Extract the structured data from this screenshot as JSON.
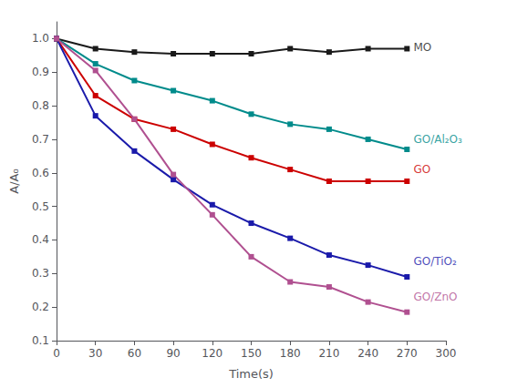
{
  "chart_data": {
    "type": "line",
    "x": [
      0,
      30,
      60,
      90,
      120,
      150,
      180,
      210,
      240,
      270
    ],
    "series": [
      {
        "color": "#1a1a1a",
        "marker": "square",
        "values": [
          1.0,
          0.97,
          0.96,
          0.955,
          0.955,
          0.955,
          0.97,
          0.96,
          0.97,
          0.97
        ]
      },
      {
        "color": "#008b8b",
        "marker": "square",
        "values": [
          1.0,
          0.925,
          0.875,
          0.845,
          0.815,
          0.775,
          0.745,
          0.73,
          0.7,
          0.67
        ]
      },
      {
        "color": "#cc0000",
        "marker": "square",
        "values": [
          1.0,
          0.83,
          0.76,
          0.73,
          0.685,
          0.645,
          0.61,
          0.575,
          0.575,
          0.575
        ]
      },
      {
        "color": "#1a1aaa",
        "marker": "square",
        "values": [
          1.0,
          0.77,
          0.665,
          0.58,
          0.505,
          0.45,
          0.405,
          0.355,
          0.325,
          0.29
        ]
      },
      {
        "color": "#b05090",
        "marker": "square",
        "values": [
          1.0,
          0.905,
          0.76,
          0.595,
          0.475,
          0.35,
          0.275,
          0.26,
          0.215,
          0.185
        ]
      }
    ],
    "annotations": [
      {
        "text": "MO",
        "x": 275,
        "y": 0.975,
        "color": "#1a1a1a"
      },
      {
        "text": "GO/Al₂O₃",
        "x": 275,
        "y": 0.7,
        "color": "#008b8b"
      },
      {
        "text": "GO",
        "x": 275,
        "y": 0.61,
        "color": "#cc0000"
      },
      {
        "text": "GO/TiO₂",
        "x": 275,
        "y": 0.335,
        "color": "#1a1aaa"
      },
      {
        "text": "GO/ZnO",
        "x": 275,
        "y": 0.23,
        "color": "#b05090"
      }
    ],
    "xlabel": "Time(s)",
    "ylabel": "A/A₀",
    "xlim": [
      0,
      300
    ],
    "ylim": [
      0.1,
      1.05
    ],
    "xticks": [
      0,
      30,
      60,
      90,
      120,
      150,
      180,
      210,
      240,
      270,
      300
    ],
    "yticks": [
      0.1,
      0.2,
      0.3,
      0.4,
      0.5,
      0.6,
      0.7,
      0.8,
      0.9,
      {
        "value": 1.0,
        "label": "1.0"
      }
    ],
    "grid": false
  }
}
